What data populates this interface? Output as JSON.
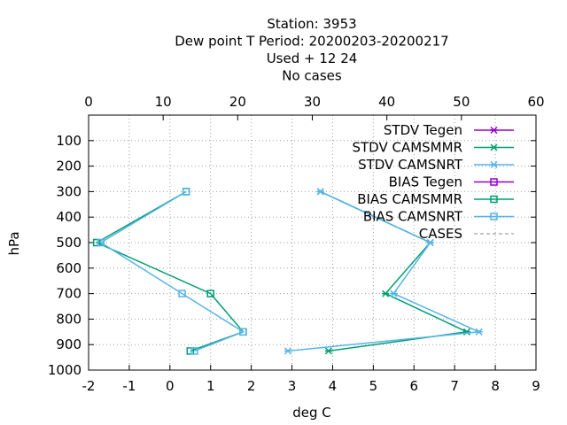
{
  "chart_data": {
    "type": "line",
    "title": [
      "Station:     3953",
      "Dew point T  Period: 20200203-20200217",
      "Used   + 12 24",
      "No cases"
    ],
    "xlabel": "deg C",
    "ylabel": "hPa",
    "xlim": [
      -2,
      9
    ],
    "x2lim": [
      0,
      60
    ],
    "ylim": [
      1000,
      0
    ],
    "x_ticks": [
      "-2",
      "-1",
      "0",
      "1",
      "2",
      "3",
      "4",
      "5",
      "6",
      "7",
      "8",
      "9"
    ],
    "x2_ticks": [
      "0",
      "10",
      "20",
      "30",
      "40",
      "50",
      "60"
    ],
    "y_ticks": [
      "100",
      "200",
      "300",
      "400",
      "500",
      "600",
      "700",
      "800",
      "900",
      "1000"
    ],
    "grid": true,
    "legend_position": "top-right",
    "series": [
      {
        "name": "STDV Tegen",
        "color": "#9400d3",
        "marker": "x",
        "x": [],
        "y": []
      },
      {
        "name": "STDV CAMSMMR",
        "color": "#009e73",
        "marker": "x",
        "x": [
          3.9,
          7.3,
          5.3,
          6.4,
          3.7
        ],
        "y": [
          925,
          850,
          700,
          500,
          300
        ]
      },
      {
        "name": "STDV CAMSNRT",
        "color": "#56b4e9",
        "marker": "x",
        "x": [
          2.9,
          7.6,
          5.5,
          6.4,
          3.7
        ],
        "y": [
          925,
          850,
          700,
          500,
          300
        ]
      },
      {
        "name": "BIAS Tegen",
        "color": "#9400d3",
        "marker": "square",
        "x": [],
        "y": []
      },
      {
        "name": "BIAS CAMSMMR",
        "color": "#009e73",
        "marker": "square",
        "x": [
          0.5,
          1.8,
          1.0,
          -1.8,
          0.4
        ],
        "y": [
          925,
          850,
          700,
          500,
          300
        ]
      },
      {
        "name": "BIAS CAMSNRT",
        "color": "#56b4e9",
        "marker": "square",
        "x": [
          0.6,
          1.8,
          0.3,
          -1.7,
          0.4
        ],
        "y": [
          925,
          850,
          700,
          500,
          300
        ]
      },
      {
        "name": "CASES",
        "color": "#888888",
        "marker": "none",
        "dashed": true,
        "x": [],
        "y": []
      }
    ]
  }
}
